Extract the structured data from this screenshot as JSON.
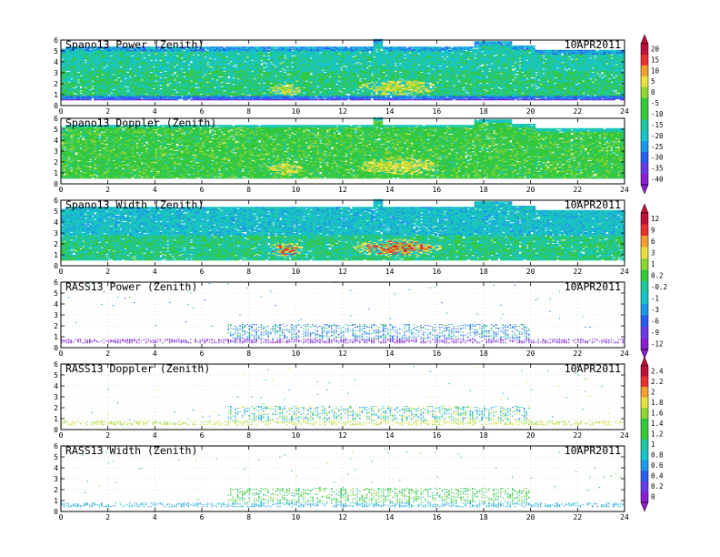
{
  "chart_data": [
    {
      "type": "heatmap",
      "title": "Spano13 Power (Zenith)",
      "date": "10APR2011",
      "xlim": [
        0,
        24
      ],
      "ylim": [
        0,
        6
      ],
      "scale": 0,
      "kind": "profiler",
      "field": "power"
    },
    {
      "type": "heatmap",
      "title": "Spano13 Doppler (Zenith)",
      "date": "",
      "xlim": [
        0,
        24
      ],
      "ylim": [
        0,
        6
      ],
      "scale": 0,
      "kind": "profiler",
      "field": "doppler"
    },
    {
      "type": "heatmap",
      "title": "Spano13 Width (Zenith)",
      "date": "10APR2011",
      "xlim": [
        0,
        24
      ],
      "ylim": [
        0,
        6
      ],
      "scale": 1,
      "kind": "profiler",
      "field": "width"
    },
    {
      "type": "heatmap",
      "title": "RASS13 Power (Zenith)",
      "date": "10APR2011",
      "xlim": [
        0,
        24
      ],
      "ylim": [
        0,
        6
      ],
      "scale": 1,
      "kind": "rass",
      "field": "power"
    },
    {
      "type": "heatmap",
      "title": "RASS13 Doppler (Zenith)",
      "date": "10APR2011",
      "xlim": [
        0,
        24
      ],
      "ylim": [
        0,
        6
      ],
      "scale": 2,
      "kind": "rass",
      "field": "doppler"
    },
    {
      "type": "heatmap",
      "title": "RASS13 Width (Zenith)",
      "date": "10APR2011",
      "xlim": [
        0,
        24
      ],
      "ylim": [
        0,
        6
      ],
      "scale": 2,
      "kind": "rass",
      "field": "width"
    }
  ],
  "xticks": [
    "0",
    "2",
    "4",
    "6",
    "8",
    "10",
    "12",
    "14",
    "16",
    "18",
    "20",
    "22",
    "24"
  ],
  "yticks": [
    "0",
    "1",
    "2",
    "3",
    "4",
    "5",
    "6"
  ],
  "colorbars": [
    {
      "labels": [
        "20",
        "15",
        "10",
        "5",
        "0",
        "-5",
        "-10",
        "-15",
        "-20",
        "-25",
        "-30",
        "-35",
        "-40"
      ]
    },
    {
      "labels": [
        "12",
        "9",
        "6",
        "3",
        "1",
        "0.2",
        "-0.2",
        "-1",
        "-3",
        "-6",
        "-9",
        "-12"
      ]
    },
    {
      "labels": [
        "2.4",
        "2.2",
        "2",
        "1.8",
        "1.6",
        "1.4",
        "1.2",
        "1",
        "0.8",
        "0.6",
        "0.4",
        "0.2",
        "0"
      ]
    }
  ],
  "colors": {
    "purple": "#8a1fd0",
    "violet": "#6a3ce8",
    "blue": "#2a5cf0",
    "sky": "#1e98e8",
    "cyan": "#17c4c8",
    "teal": "#20c8a0",
    "green": "#34c83c",
    "lime": "#8fd634",
    "yellow": "#e8e040",
    "orange": "#f0a030",
    "red": "#e83030",
    "crimson": "#c0103c"
  }
}
